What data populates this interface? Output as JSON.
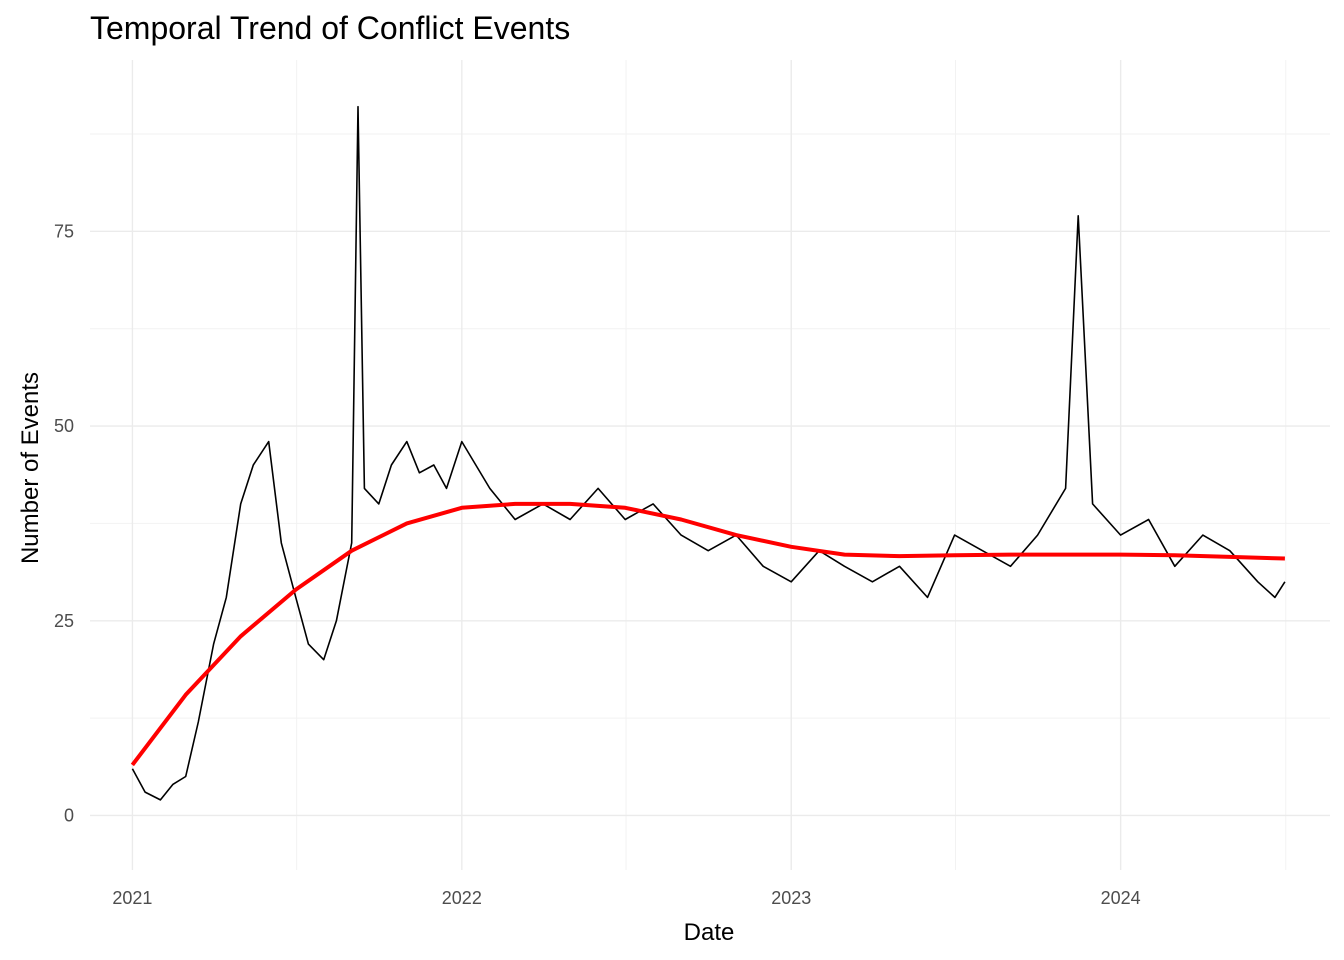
{
  "chart_data": {
    "type": "line",
    "title": "Temporal Trend of Conflict Events",
    "xlabel": "Date",
    "ylabel": "Number of Events",
    "xlim": [
      "2020-11-15",
      "2024-08-20"
    ],
    "ylim": [
      -7,
      97
    ],
    "x_major_ticks": [
      {
        "date": "2021-01-01",
        "label": "2021"
      },
      {
        "date": "2022-01-01",
        "label": "2022"
      },
      {
        "date": "2023-01-01",
        "label": "2023"
      },
      {
        "date": "2024-01-01",
        "label": "2024"
      }
    ],
    "x_minor_ticks": [
      "2021-07-02",
      "2022-07-02",
      "2023-07-02",
      "2024-07-02"
    ],
    "y_major_ticks": [
      {
        "value": 0,
        "label": "0"
      },
      {
        "value": 25,
        "label": "25"
      },
      {
        "value": 50,
        "label": "50"
      },
      {
        "value": 75,
        "label": "75"
      }
    ],
    "y_minor_ticks": [
      12.5,
      37.5,
      62.5,
      87.5
    ],
    "grid": true,
    "legend": "none",
    "series": [
      {
        "style": "daily",
        "color": "#000000",
        "x": [
          "2021-01-01",
          "2021-01-15",
          "2021-02-01",
          "2021-02-15",
          "2021-03-01",
          "2021-03-15",
          "2021-04-01",
          "2021-04-15",
          "2021-05-01",
          "2021-05-15",
          "2021-06-01",
          "2021-06-15",
          "2021-07-01",
          "2021-07-15",
          "2021-08-01",
          "2021-08-15",
          "2021-09-01",
          "2021-09-08",
          "2021-09-15",
          "2021-10-01",
          "2021-10-15",
          "2021-11-01",
          "2021-11-15",
          "2021-12-01",
          "2021-12-15",
          "2022-01-01",
          "2022-02-01",
          "2022-03-01",
          "2022-04-01",
          "2022-05-01",
          "2022-06-01",
          "2022-07-01",
          "2022-08-01",
          "2022-09-01",
          "2022-10-01",
          "2022-11-01",
          "2022-12-01",
          "2023-01-01",
          "2023-02-01",
          "2023-03-01",
          "2023-04-01",
          "2023-05-01",
          "2023-06-01",
          "2023-07-01",
          "2023-08-01",
          "2023-09-01",
          "2023-10-01",
          "2023-11-01",
          "2023-11-15",
          "2023-12-01",
          "2024-01-01",
          "2024-02-01",
          "2024-03-01",
          "2024-04-01",
          "2024-05-01",
          "2024-06-01",
          "2024-06-20",
          "2024-07-01"
        ],
        "y": [
          6,
          3,
          2,
          4,
          5,
          12,
          22,
          28,
          40,
          45,
          48,
          35,
          28,
          22,
          20,
          25,
          35,
          91,
          42,
          40,
          45,
          48,
          44,
          45,
          42,
          48,
          42,
          38,
          40,
          38,
          42,
          38,
          40,
          36,
          34,
          36,
          32,
          30,
          34,
          32,
          30,
          32,
          28,
          36,
          34,
          32,
          36,
          42,
          77,
          40,
          36,
          38,
          32,
          36,
          34,
          30,
          28,
          30
        ]
      },
      {
        "style": "smoothed",
        "color": "#ff0000",
        "x": [
          "2021-01-01",
          "2021-03-01",
          "2021-05-01",
          "2021-07-01",
          "2021-09-01",
          "2021-11-01",
          "2022-01-01",
          "2022-03-01",
          "2022-05-01",
          "2022-07-01",
          "2022-09-01",
          "2022-11-01",
          "2023-01-01",
          "2023-03-01",
          "2023-05-01",
          "2023-07-01",
          "2023-09-01",
          "2023-11-01",
          "2024-01-01",
          "2024-03-01",
          "2024-05-01",
          "2024-07-01"
        ],
        "y": [
          6.5,
          15.5,
          23,
          29,
          34,
          37.5,
          39.5,
          40,
          40,
          39.5,
          38,
          36,
          34.5,
          33.5,
          33.3,
          33.4,
          33.5,
          33.5,
          33.5,
          33.4,
          33.2,
          33
        ]
      }
    ]
  }
}
